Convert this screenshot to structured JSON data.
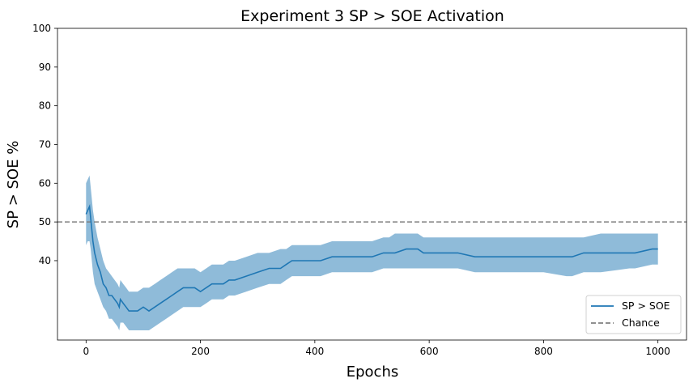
{
  "chart_data": {
    "type": "line",
    "title": "Experiment 3 SP > SOE Activation",
    "xlabel": "Epochs",
    "ylabel": "SP > SOE %",
    "xlim": [
      -50,
      1050
    ],
    "ylim": [
      19.5,
      100
    ],
    "x_ticks": [
      0,
      200,
      400,
      600,
      800,
      1000
    ],
    "y_ticks": [
      40,
      50,
      60,
      70,
      80,
      90,
      100
    ],
    "grid": false,
    "legend_position": "lower-right",
    "series": [
      {
        "name": "SP > SOE",
        "color": "#1f77b4",
        "band_color": "#8fbbd9",
        "x": [
          0,
          3,
          6,
          8,
          10,
          12,
          15,
          20,
          25,
          30,
          35,
          40,
          45,
          50,
          55,
          58,
          60,
          65,
          70,
          75,
          80,
          90,
          100,
          110,
          120,
          130,
          140,
          150,
          160,
          170,
          180,
          190,
          200,
          210,
          220,
          240,
          250,
          260,
          280,
          300,
          320,
          340,
          350,
          360,
          380,
          400,
          410,
          430,
          450,
          480,
          500,
          520,
          530,
          540,
          560,
          580,
          590,
          600,
          650,
          680,
          700,
          750,
          800,
          840,
          850,
          870,
          900,
          950,
          960,
          990,
          1000
        ],
        "y": [
          52,
          53,
          54,
          51,
          48,
          45,
          42,
          39,
          37,
          34,
          33,
          31,
          31,
          30,
          29,
          28,
          30,
          29,
          28,
          27,
          27,
          27,
          28,
          27,
          28,
          29,
          30,
          31,
          32,
          33,
          33,
          33,
          32,
          33,
          34,
          34,
          35,
          35,
          36,
          37,
          38,
          38,
          39,
          40,
          40,
          40,
          40,
          41,
          41,
          41,
          41,
          42,
          42,
          42,
          43,
          43,
          42,
          42,
          42,
          41,
          41,
          41,
          41,
          41,
          41,
          42,
          42,
          42,
          42,
          43,
          43
        ],
        "lower": [
          44,
          45,
          45,
          43,
          40,
          37,
          34,
          32,
          30,
          28,
          27,
          25,
          25,
          24,
          23,
          22,
          24,
          24,
          23,
          22,
          22,
          22,
          22,
          22,
          23,
          24,
          25,
          26,
          27,
          28,
          28,
          28,
          28,
          29,
          30,
          30,
          31,
          31,
          32,
          33,
          34,
          34,
          35,
          36,
          36,
          36,
          36,
          37,
          37,
          37,
          37,
          38,
          38,
          38,
          38,
          38,
          38,
          38,
          38,
          37,
          37,
          37,
          37,
          36,
          36,
          37,
          37,
          38,
          38,
          39,
          39
        ],
        "upper": [
          60,
          61,
          62,
          59,
          56,
          53,
          50,
          46,
          43,
          40,
          38,
          37,
          36,
          35,
          34,
          33,
          35,
          34,
          33,
          32,
          32,
          32,
          33,
          33,
          34,
          35,
          36,
          37,
          38,
          38,
          38,
          38,
          37,
          38,
          39,
          39,
          40,
          40,
          41,
          42,
          42,
          43,
          43,
          44,
          44,
          44,
          44,
          45,
          45,
          45,
          45,
          46,
          46,
          47,
          47,
          47,
          46,
          46,
          46,
          46,
          46,
          46,
          46,
          46,
          46,
          46,
          47,
          47,
          47,
          47,
          47
        ]
      },
      {
        "name": "Chance",
        "color": "#808080",
        "style": "dashed",
        "y_constant": 50
      }
    ]
  }
}
